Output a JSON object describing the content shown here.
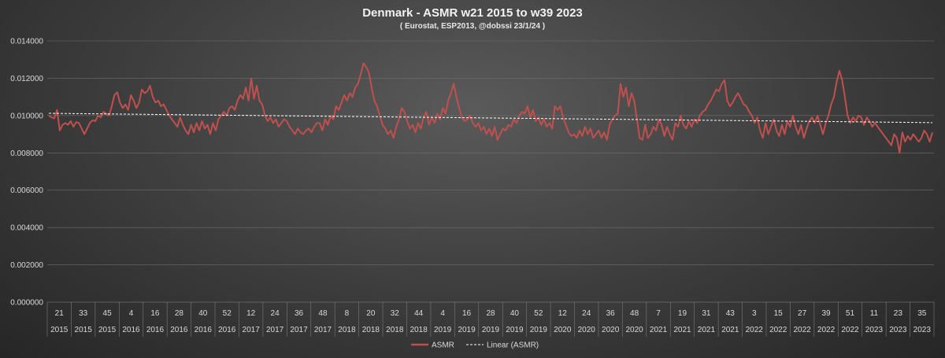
{
  "chart_data": {
    "type": "line",
    "title": "Denmark - ASMR w21 2015 to w39 2023",
    "subtitle": "( Eurostat, ESP2013, @dobssi 23/1/24 )",
    "ylim": [
      0,
      0.014
    ],
    "yticks": [
      "0.000000",
      "0.002000",
      "0.004000",
      "0.006000",
      "0.008000",
      "0.010000",
      "0.012000",
      "0.014000"
    ],
    "grid": true,
    "legend_position": "bottom",
    "x_tick_labels": [
      {
        "week": "21",
        "year": "2015"
      },
      {
        "week": "33",
        "year": "2015"
      },
      {
        "week": "45",
        "year": "2015"
      },
      {
        "week": "4",
        "year": "2016"
      },
      {
        "week": "16",
        "year": "2016"
      },
      {
        "week": "28",
        "year": "2016"
      },
      {
        "week": "40",
        "year": "2016"
      },
      {
        "week": "52",
        "year": "2016"
      },
      {
        "week": "12",
        "year": "2017"
      },
      {
        "week": "24",
        "year": "2017"
      },
      {
        "week": "36",
        "year": "2017"
      },
      {
        "week": "48",
        "year": "2017"
      },
      {
        "week": "8",
        "year": "2018"
      },
      {
        "week": "20",
        "year": "2018"
      },
      {
        "week": "32",
        "year": "2018"
      },
      {
        "week": "44",
        "year": "2018"
      },
      {
        "week": "4",
        "year": "2019"
      },
      {
        "week": "16",
        "year": "2019"
      },
      {
        "week": "28",
        "year": "2019"
      },
      {
        "week": "40",
        "year": "2019"
      },
      {
        "week": "52",
        "year": "2019"
      },
      {
        "week": "12",
        "year": "2020"
      },
      {
        "week": "24",
        "year": "2020"
      },
      {
        "week": "36",
        "year": "2020"
      },
      {
        "week": "48",
        "year": "2020"
      },
      {
        "week": "7",
        "year": "2021"
      },
      {
        "week": "19",
        "year": "2021"
      },
      {
        "week": "31",
        "year": "2021"
      },
      {
        "week": "43",
        "year": "2021"
      },
      {
        "week": "3",
        "year": "2022"
      },
      {
        "week": "15",
        "year": "2022"
      },
      {
        "week": "27",
        "year": "2022"
      },
      {
        "week": "39",
        "year": "2022"
      },
      {
        "week": "51",
        "year": "2022"
      },
      {
        "week": "11",
        "year": "2023"
      },
      {
        "week": "23",
        "year": "2023"
      },
      {
        "week": "35",
        "year": "2023"
      }
    ],
    "series": [
      {
        "name": "ASMR",
        "color": "#c0504d",
        "style": "solid",
        "values": [
          0.01,
          0.0099,
          0.00985,
          0.0103,
          0.0092,
          0.0095,
          0.0096,
          0.0095,
          0.0097,
          0.0094,
          0.00965,
          0.0096,
          0.0093,
          0.009,
          0.0093,
          0.0096,
          0.00975,
          0.0097,
          0.01,
          0.0099,
          0.0102,
          0.0101,
          0.01,
          0.0105,
          0.0111,
          0.01125,
          0.0107,
          0.0104,
          0.0106,
          0.0103,
          0.0111,
          0.0108,
          0.0104,
          0.0107,
          0.0114,
          0.0112,
          0.0113,
          0.0116,
          0.011,
          0.0107,
          0.0108,
          0.0105,
          0.0106,
          0.0103,
          0.01,
          0.0098,
          0.0096,
          0.0094,
          0.0099,
          0.0095,
          0.0092,
          0.009,
          0.0095,
          0.0091,
          0.0096,
          0.0092,
          0.0097,
          0.0093,
          0.0095,
          0.009,
          0.0096,
          0.0092,
          0.0098,
          0.01,
          0.0102,
          0.01,
          0.0104,
          0.0105,
          0.0103,
          0.0108,
          0.0111,
          0.0109,
          0.0115,
          0.0108,
          0.012,
          0.0109,
          0.0116,
          0.0108,
          0.0106,
          0.01,
          0.0097,
          0.0099,
          0.0096,
          0.0098,
          0.0094,
          0.0096,
          0.0098,
          0.0097,
          0.0094,
          0.0092,
          0.009,
          0.0093,
          0.0091,
          0.009,
          0.0092,
          0.0093,
          0.0091,
          0.0094,
          0.0096,
          0.0096,
          0.0092,
          0.0098,
          0.0095,
          0.01,
          0.0098,
          0.0105,
          0.0103,
          0.0107,
          0.0111,
          0.0108,
          0.0112,
          0.011,
          0.0115,
          0.0117,
          0.0122,
          0.0128,
          0.0126,
          0.0123,
          0.0115,
          0.0108,
          0.0105,
          0.01,
          0.0095,
          0.0093,
          0.009,
          0.0092,
          0.0088,
          0.0094,
          0.0098,
          0.0104,
          0.0102,
          0.0097,
          0.0093,
          0.0095,
          0.0091,
          0.0096,
          0.0093,
          0.0099,
          0.0102,
          0.0095,
          0.0099,
          0.0096,
          0.0101,
          0.0098,
          0.0104,
          0.0101,
          0.0108,
          0.0112,
          0.0117,
          0.011,
          0.0104,
          0.0099,
          0.0097,
          0.0098,
          0.01,
          0.0096,
          0.0094,
          0.0096,
          0.0092,
          0.0094,
          0.009,
          0.0093,
          0.0089,
          0.0094,
          0.0087,
          0.009,
          0.0093,
          0.0092,
          0.0095,
          0.0094,
          0.0098,
          0.0096,
          0.01,
          0.0102,
          0.0101,
          0.0105,
          0.0099,
          0.0103,
          0.0097,
          0.0099,
          0.0095,
          0.0098,
          0.0094,
          0.0096,
          0.0093,
          0.0105,
          0.0103,
          0.0105,
          0.0099,
          0.0095,
          0.0091,
          0.0089,
          0.009,
          0.0088,
          0.0092,
          0.0089,
          0.0094,
          0.009,
          0.0093,
          0.0088,
          0.009,
          0.0092,
          0.0088,
          0.0091,
          0.0087,
          0.0095,
          0.0098,
          0.01,
          0.0101,
          0.0117,
          0.011,
          0.0115,
          0.0105,
          0.0112,
          0.0108,
          0.0098,
          0.0088,
          0.0087,
          0.0095,
          0.0088,
          0.009,
          0.0094,
          0.0092,
          0.0098,
          0.0095,
          0.0089,
          0.0094,
          0.009,
          0.0087,
          0.0096,
          0.0094,
          0.01,
          0.0095,
          0.0093,
          0.0097,
          0.0094,
          0.0098,
          0.0096,
          0.01,
          0.0102,
          0.0103,
          0.0106,
          0.0108,
          0.0111,
          0.0114,
          0.0113,
          0.0117,
          0.0119,
          0.0108,
          0.0105,
          0.0107,
          0.011,
          0.0112,
          0.0109,
          0.0106,
          0.0105,
          0.0102,
          0.01,
          0.0096,
          0.0099,
          0.0092,
          0.0088,
          0.0096,
          0.009,
          0.0094,
          0.0098,
          0.0092,
          0.0089,
          0.0095,
          0.009,
          0.0097,
          0.0094,
          0.01,
          0.0094,
          0.009,
          0.0095,
          0.0088,
          0.0093,
          0.0097,
          0.0099,
          0.0096,
          0.01,
          0.0095,
          0.009,
          0.0096,
          0.01,
          0.0106,
          0.011,
          0.0118,
          0.0124,
          0.0119,
          0.011,
          0.01,
          0.0096,
          0.0099,
          0.0097,
          0.01,
          0.0099,
          0.0095,
          0.0099,
          0.0097,
          0.0094,
          0.0096,
          0.0094,
          0.0092,
          0.009,
          0.0088,
          0.0086,
          0.0084,
          0.009,
          0.0088,
          0.008,
          0.0091,
          0.0086,
          0.0089,
          0.0087,
          0.009,
          0.0088,
          0.0086,
          0.0088,
          0.0092,
          0.009,
          0.0086,
          0.0091
        ]
      },
      {
        "name": "Linear (ASMR)",
        "color": "#ffffff",
        "style": "dashed",
        "values": [
          0.01012,
          0.00962
        ]
      }
    ]
  }
}
